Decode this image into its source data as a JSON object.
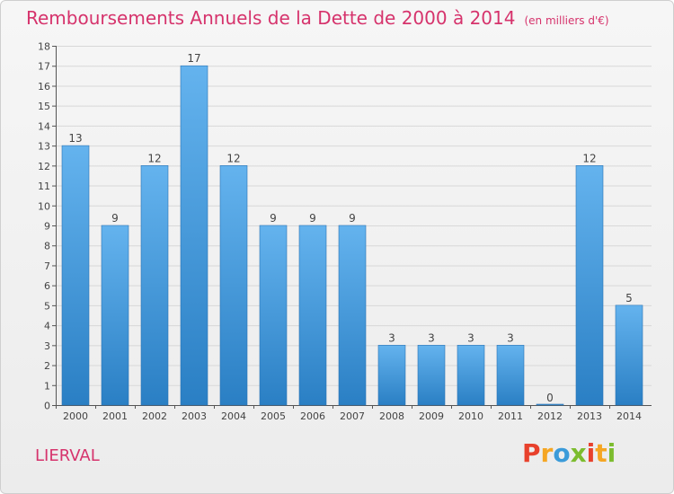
{
  "chart_data": {
    "type": "bar",
    "title": "Remboursements Annuels de la Dette de 2000 à 2014",
    "unit": "(en milliers d'€)",
    "categories": [
      "2000",
      "2001",
      "2002",
      "2003",
      "2004",
      "2005",
      "2006",
      "2007",
      "2008",
      "2009",
      "2010",
      "2011",
      "2012",
      "2013",
      "2014"
    ],
    "values": [
      13,
      9,
      12,
      17,
      12,
      9,
      9,
      9,
      3,
      3,
      3,
      3,
      0,
      12,
      5
    ],
    "ylim": [
      0,
      18
    ],
    "yticks": [
      0,
      1,
      2,
      3,
      4,
      5,
      6,
      7,
      8,
      9,
      10,
      11,
      12,
      13,
      14,
      15,
      16,
      17,
      18
    ],
    "grid": true,
    "bar_color": "#4a9fe0"
  },
  "footer": {
    "commune": "LIERVAL"
  },
  "logo": {
    "letters": [
      "P",
      "r",
      "o",
      "x",
      "i",
      "t",
      "i"
    ],
    "colors": [
      "#e8412c",
      "#f5a623",
      "#3b9bd9",
      "#7cbc2e",
      "#e8412c",
      "#f5a623",
      "#7cbc2e"
    ]
  }
}
